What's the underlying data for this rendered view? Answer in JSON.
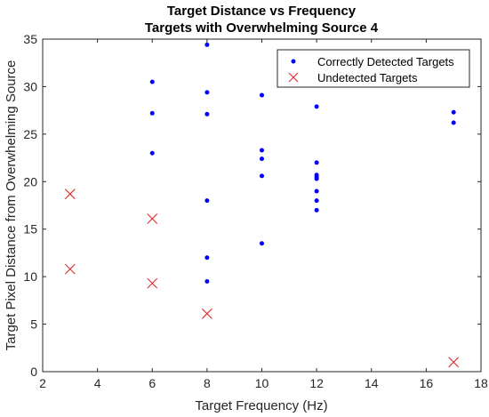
{
  "chart_data": {
    "type": "scatter",
    "title": "Target Distance vs Frequency",
    "subtitle": "Targets with Overwhelming Source 4",
    "xlabel": "Target Frequency (Hz)",
    "ylabel": "Target Pixel Distance from Overwhelming Source",
    "xlim": [
      2,
      18
    ],
    "ylim": [
      0,
      35
    ],
    "xticks": [
      2,
      4,
      6,
      8,
      10,
      12,
      14,
      16,
      18
    ],
    "yticks": [
      0,
      5,
      10,
      15,
      20,
      25,
      30,
      35
    ],
    "grid": false,
    "legend_position": "top-right",
    "series": [
      {
        "name": "Correctly Detected Targets",
        "marker": "dot",
        "color": "#0000ff",
        "x": [
          6,
          6,
          6,
          8,
          8,
          8,
          8,
          8,
          8,
          10,
          10,
          10,
          10,
          10,
          12,
          12,
          12,
          12,
          12,
          12,
          12,
          12,
          17,
          17
        ],
        "y": [
          30.5,
          27.2,
          23.0,
          34.4,
          29.4,
          27.1,
          18.0,
          12.0,
          9.5,
          29.1,
          23.3,
          22.4,
          20.6,
          13.5,
          27.9,
          22.0,
          20.7,
          20.3,
          19.0,
          18.0,
          17.0,
          20.5,
          27.3,
          26.2
        ]
      },
      {
        "name": "Undetected Targets",
        "marker": "x",
        "color": "#e0262b",
        "x": [
          3,
          3,
          6,
          6,
          8,
          17
        ],
        "y": [
          18.7,
          10.8,
          16.1,
          9.3,
          6.1,
          1.0
        ]
      }
    ]
  }
}
